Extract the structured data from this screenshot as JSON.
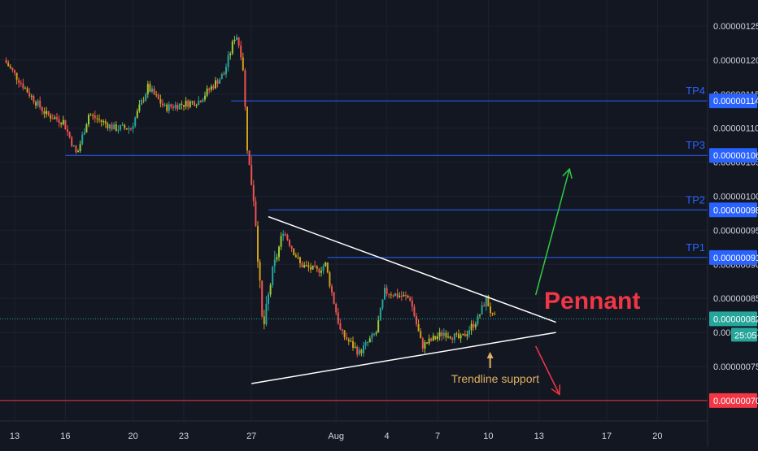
{
  "colors": {
    "background": "#131722",
    "candle_up": "#26a69a",
    "candle_down": "#ef5350",
    "candle_up_alt": "#9ccc3c",
    "candle_down_alt": "#d4a017",
    "tp_line": "#2962ff",
    "tp_label": "#2962ff",
    "current_line": "#26a69a",
    "stop_line": "#f23645",
    "trendline": "#ffffff",
    "up_arrow": "#2ecc40",
    "down_arrow": "#f23645",
    "pennant_text": "#f23645",
    "support_text": "#e0b060",
    "axis_text": "#d1d4dc",
    "gridline": "#1e2230"
  },
  "chart_data": {
    "type": "candlestick",
    "title": "",
    "xlabel": "",
    "ylabel": "",
    "ylim": [
      6.7e-07,
      1.28e-06
    ],
    "y_ticks": [
      "0.00000125",
      "0.00000120",
      "0.00000115",
      "0.00000110",
      "0.00000105",
      "0.00000100",
      "0.00000095",
      "0.00000090",
      "0.00000085",
      "0.00000080",
      "0.00000075"
    ],
    "y_tick_values": [
      1.25e-06,
      1.2e-06,
      1.15e-06,
      1.1e-06,
      1.05e-06,
      1e-06,
      9.5e-07,
      9e-07,
      8.5e-07,
      8e-07,
      7.5e-07
    ],
    "x_ticks": [
      "13",
      "16",
      "20",
      "23",
      "27",
      "Aug",
      "4",
      "7",
      "10",
      "13",
      "17",
      "20"
    ],
    "x_tick_days": [
      13,
      16,
      20,
      23,
      27,
      32,
      35,
      38,
      41,
      44,
      48,
      51
    ],
    "xlim_days": [
      12.5,
      52.5
    ],
    "series_anchor": [
      {
        "day": 12.5,
        "price": 1.2e-06
      },
      {
        "day": 14,
        "price": 1.15e-06
      },
      {
        "day": 15,
        "price": 1.12e-06
      },
      {
        "day": 16,
        "price": 1.11e-06
      },
      {
        "day": 16.8,
        "price": 1.06e-06
      },
      {
        "day": 17.5,
        "price": 1.12e-06
      },
      {
        "day": 19,
        "price": 1.1e-06
      },
      {
        "day": 20,
        "price": 1.1e-06
      },
      {
        "day": 21,
        "price": 1.16e-06
      },
      {
        "day": 22,
        "price": 1.13e-06
      },
      {
        "day": 24,
        "price": 1.14e-06
      },
      {
        "day": 25.5,
        "price": 1.18e-06
      },
      {
        "day": 26.2,
        "price": 1.24e-06
      },
      {
        "day": 26.6,
        "price": 1.2e-06
      },
      {
        "day": 26.9,
        "price": 1.06e-06
      },
      {
        "day": 27.3,
        "price": 9.9e-07
      },
      {
        "day": 27.8,
        "price": 8e-07
      },
      {
        "day": 28.3,
        "price": 8.8e-07
      },
      {
        "day": 29,
        "price": 9.5e-07
      },
      {
        "day": 30,
        "price": 9e-07
      },
      {
        "day": 31,
        "price": 8.9e-07
      },
      {
        "day": 31.5,
        "price": 9e-07
      },
      {
        "day": 32.4,
        "price": 8e-07
      },
      {
        "day": 33.5,
        "price": 7.7e-07
      },
      {
        "day": 34.5,
        "price": 8e-07
      },
      {
        "day": 35,
        "price": 8.6e-07
      },
      {
        "day": 36.5,
        "price": 8.5e-07
      },
      {
        "day": 37.2,
        "price": 7.8e-07
      },
      {
        "day": 38.5,
        "price": 8e-07
      },
      {
        "day": 39.5,
        "price": 7.9e-07
      },
      {
        "day": 40.5,
        "price": 8.2e-07
      },
      {
        "day": 41,
        "price": 8.5e-07
      },
      {
        "day": 41.4,
        "price": 8.2e-07
      }
    ],
    "price_levels": [
      {
        "label": "TP4",
        "value": 1.14e-06,
        "value_label": "0.00000114",
        "start_day": 25.8
      },
      {
        "label": "TP3",
        "value": 1.06e-06,
        "value_label": "0.00000106",
        "start_day": 16
      },
      {
        "label": "TP2",
        "value": 9.8e-07,
        "value_label": "0.00000098",
        "start_day": 28
      },
      {
        "label": "TP1",
        "value": 9.1e-07,
        "value_label": "0.00000091",
        "start_day": 31.5
      }
    ],
    "current_price": {
      "value": 8.2e-07,
      "value_label": "0.00000082",
      "countdown": "25:05"
    },
    "stop_level": {
      "value": 7e-07,
      "value_label": "0.00000070"
    },
    "trendlines": [
      {
        "from": {
          "day": 28,
          "price": 9.7e-07
        },
        "to": {
          "day": 45,
          "price": 8.15e-07
        }
      },
      {
        "from": {
          "day": 27,
          "price": 7.25e-07
        },
        "to": {
          "day": 45,
          "price": 8e-07
        }
      }
    ],
    "arrows": [
      {
        "direction": "up",
        "from": {
          "day": 43.8,
          "price": 8.55e-07
        },
        "to": {
          "day": 45.8,
          "price": 1.04e-06
        }
      },
      {
        "direction": "down",
        "from": {
          "day": 43.8,
          "price": 7.8e-07
        },
        "to": {
          "day": 45.2,
          "price": 7.09e-07
        }
      }
    ],
    "annotations": [
      {
        "text": "Pennant",
        "day": 44.3,
        "price": 8.35e-07
      },
      {
        "text": "Trendline support",
        "day": 38.8,
        "price": 7.38e-07
      }
    ]
  }
}
